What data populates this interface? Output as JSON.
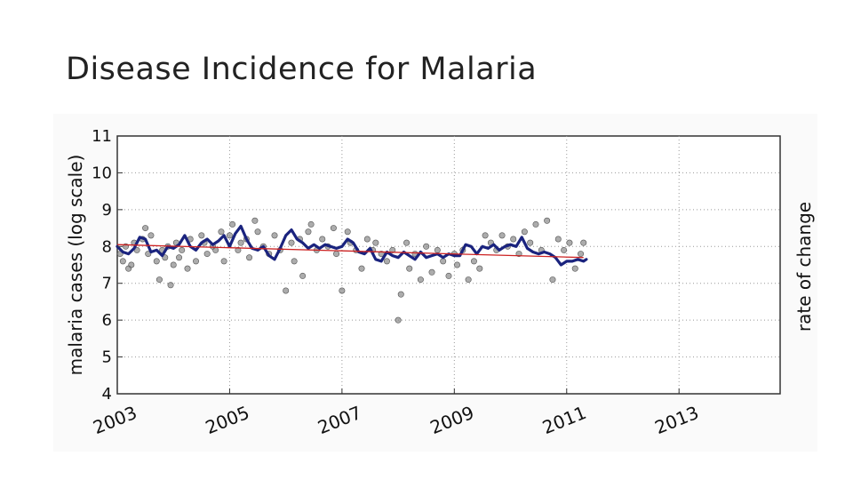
{
  "slide": {
    "title": "Disease Incidence for Malaria"
  },
  "chart_data": {
    "type": "scatter",
    "ylabel": "malaria cases (log scale)",
    "ylabel_right": "rate of change",
    "xlabel": "",
    "xlim": [
      2003,
      2014.8
    ],
    "ylim": [
      4,
      11
    ],
    "x_ticks": [
      2003,
      2005,
      2007,
      2009,
      2011,
      2013
    ],
    "x_tick_labels": [
      "2003",
      "2005",
      "2007",
      "2009",
      "2011",
      "2013"
    ],
    "y_ticks": [
      4,
      5,
      6,
      7,
      8,
      9,
      10,
      11
    ],
    "y_tick_labels": [
      "4",
      "5",
      "6",
      "7",
      "8",
      "9",
      "10",
      "11"
    ],
    "grid": true,
    "colors": {
      "points": "#808080",
      "smooth": "#1a237e",
      "trend": "#cc2222"
    },
    "series": [
      {
        "kind": "points",
        "x": [
          2003.05,
          2003.1,
          2003.15,
          2003.2,
          2003.25,
          2003.3,
          2003.35,
          2003.45,
          2003.5,
          2003.55,
          2003.6,
          2003.7,
          2003.75,
          2003.8,
          2003.85,
          2003.9,
          2003.95,
          2004.0,
          2004.05,
          2004.1,
          2004.15,
          2004.25,
          2004.3,
          2004.4,
          2004.5,
          2004.55,
          2004.6,
          2004.7,
          2004.75,
          2004.85,
          2004.9,
          2005.0,
          2005.05,
          2005.15,
          2005.2,
          2005.3,
          2005.35,
          2005.45,
          2005.5,
          2005.6,
          2005.7,
          2005.8,
          2005.9,
          2006.0,
          2006.1,
          2006.15,
          2006.25,
          2006.3,
          2006.4,
          2006.45,
          2006.55,
          2006.65,
          2006.75,
          2006.85,
          2006.9,
          2007.0,
          2007.1,
          2007.15,
          2007.25,
          2007.35,
          2007.45,
          2007.55,
          2007.6,
          2007.7,
          2007.8,
          2007.9,
          2008.0,
          2008.05,
          2008.15,
          2008.2,
          2008.3,
          2008.4,
          2008.5,
          2008.6,
          2008.7,
          2008.8,
          2008.9,
          2009.0,
          2009.05,
          2009.15,
          2009.25,
          2009.35,
          2009.45,
          2009.55,
          2009.65,
          2009.75,
          2009.85,
          2009.95,
          2010.05,
          2010.15,
          2010.25,
          2010.35,
          2010.45,
          2010.55,
          2010.65,
          2010.75,
          2010.85,
          2010.95,
          2011.05,
          2011.15,
          2011.25,
          2011.3
        ],
        "y": [
          7.8,
          7.6,
          8.0,
          7.4,
          7.5,
          8.1,
          7.9,
          8.2,
          8.5,
          7.8,
          8.3,
          7.6,
          7.1,
          7.9,
          7.7,
          8.0,
          6.95,
          7.5,
          8.1,
          7.7,
          7.9,
          7.4,
          8.2,
          7.6,
          8.3,
          8.1,
          7.8,
          8.0,
          7.9,
          8.4,
          7.6,
          8.3,
          8.6,
          7.9,
          8.1,
          8.2,
          7.7,
          8.7,
          8.4,
          8.0,
          7.8,
          8.3,
          7.9,
          6.8,
          8.1,
          7.6,
          8.2,
          7.2,
          8.4,
          8.6,
          7.9,
          8.2,
          8.0,
          8.5,
          7.8,
          6.8,
          8.4,
          8.1,
          7.9,
          7.4,
          8.2,
          7.9,
          8.1,
          7.8,
          7.6,
          7.9,
          6.0,
          6.7,
          8.1,
          7.4,
          7.8,
          7.1,
          8.0,
          7.3,
          7.9,
          7.6,
          7.2,
          7.8,
          7.5,
          7.9,
          7.1,
          7.6,
          7.4,
          8.3,
          8.1,
          7.9,
          8.3,
          8.0,
          8.2,
          7.8,
          8.4,
          8.1,
          8.6,
          7.9,
          8.7,
          7.1,
          8.2,
          7.9,
          8.1,
          7.4,
          7.8,
          8.1
        ]
      },
      {
        "kind": "smoothed",
        "x": [
          2003.0,
          2003.1,
          2003.2,
          2003.3,
          2003.4,
          2003.5,
          2003.6,
          2003.7,
          2003.8,
          2003.9,
          2004.0,
          2004.1,
          2004.2,
          2004.3,
          2004.4,
          2004.5,
          2004.6,
          2004.7,
          2004.8,
          2004.9,
          2005.0,
          2005.1,
          2005.2,
          2005.3,
          2005.4,
          2005.5,
          2005.6,
          2005.7,
          2005.8,
          2005.9,
          2006.0,
          2006.1,
          2006.2,
          2006.3,
          2006.4,
          2006.5,
          2006.6,
          2006.7,
          2006.8,
          2006.9,
          2007.0,
          2007.1,
          2007.2,
          2007.3,
          2007.4,
          2007.5,
          2007.6,
          2007.7,
          2007.8,
          2007.9,
          2008.0,
          2008.1,
          2008.2,
          2008.3,
          2008.4,
          2008.5,
          2008.6,
          2008.7,
          2008.8,
          2008.9,
          2009.0,
          2009.1,
          2009.2,
          2009.3,
          2009.4,
          2009.5,
          2009.6,
          2009.7,
          2009.8,
          2009.9,
          2010.0,
          2010.1,
          2010.2,
          2010.3,
          2010.4,
          2010.5,
          2010.6,
          2010.7,
          2010.8,
          2010.9,
          2011.0,
          2011.1,
          2011.2,
          2011.3,
          2011.35
        ],
        "y": [
          8.0,
          7.85,
          7.8,
          7.95,
          8.25,
          8.2,
          7.85,
          7.9,
          7.75,
          8.0,
          7.95,
          8.05,
          8.3,
          8.0,
          7.9,
          8.1,
          8.2,
          8.05,
          8.15,
          8.3,
          8.0,
          8.35,
          8.55,
          8.2,
          7.95,
          7.9,
          8.0,
          7.75,
          7.65,
          7.95,
          8.3,
          8.45,
          8.2,
          8.1,
          7.95,
          8.05,
          7.95,
          8.05,
          8.0,
          7.95,
          8.0,
          8.2,
          8.1,
          7.85,
          7.8,
          7.95,
          7.65,
          7.6,
          7.85,
          7.75,
          7.7,
          7.85,
          7.75,
          7.65,
          7.85,
          7.7,
          7.75,
          7.8,
          7.7,
          7.8,
          7.75,
          7.75,
          8.05,
          8.0,
          7.8,
          8.0,
          7.95,
          8.05,
          7.9,
          8.0,
          8.05,
          8.0,
          8.25,
          7.95,
          7.85,
          7.8,
          7.85,
          7.8,
          7.7,
          7.5,
          7.6,
          7.6,
          7.65,
          7.6,
          7.65
        ]
      },
      {
        "kind": "trend",
        "x": [
          2003.0,
          2011.3
        ],
        "y": [
          8.05,
          7.7
        ]
      }
    ]
  }
}
